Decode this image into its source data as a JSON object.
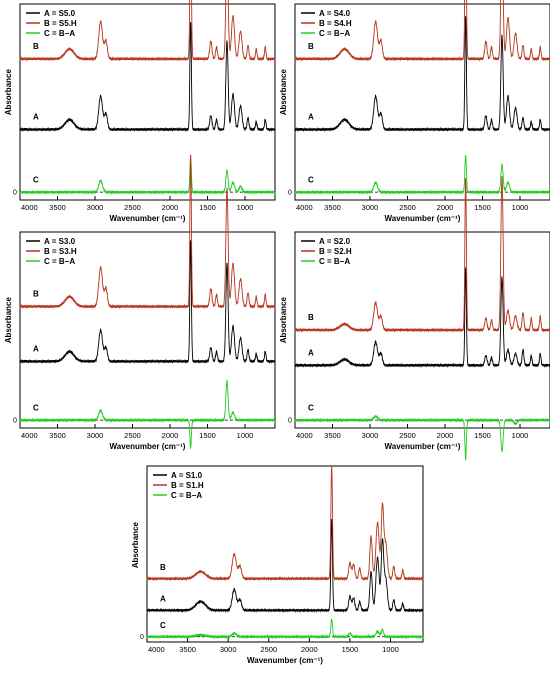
{
  "colors": {
    "A": "#000000",
    "B": "#b5361c",
    "C": "#22cc22"
  },
  "chart_data": [
    {
      "type": "line",
      "panel": "S5",
      "xlabel": "Wavenumber (cm⁻¹)",
      "ylabel": "Absorbance",
      "xlim": [
        4000,
        600
      ],
      "x_reversed": true,
      "xticks": [
        "4000",
        "3500",
        "3000",
        "2500",
        "2000",
        "1500",
        "1000"
      ],
      "zero_label": "0",
      "grid": false,
      "legend_position": "top-left",
      "series": [
        {
          "key": "A",
          "name": "A = S5.0",
          "label": "A",
          "offset": 0.36,
          "peaks": [
            [
              3340,
              60,
              0.05
            ],
            [
              2925,
              25,
              0.17
            ],
            [
              2855,
              20,
              0.08
            ],
            [
              1725,
              10,
              0.55
            ],
            [
              1455,
              15,
              0.07
            ],
            [
              1380,
              12,
              0.05
            ],
            [
              1240,
              15,
              0.45
            ],
            [
              1160,
              20,
              0.18
            ],
            [
              1060,
              20,
              0.12
            ],
            [
              960,
              12,
              0.06
            ],
            [
              850,
              10,
              0.04
            ],
            [
              730,
              10,
              0.05
            ]
          ]
        },
        {
          "key": "B",
          "name": "B = S5.H",
          "label": "B",
          "offset": 0.72,
          "peaks": [
            [
              3340,
              60,
              0.05
            ],
            [
              2925,
              25,
              0.19
            ],
            [
              2855,
              20,
              0.09
            ],
            [
              1725,
              10,
              0.72
            ],
            [
              1455,
              15,
              0.09
            ],
            [
              1380,
              12,
              0.06
            ],
            [
              1240,
              15,
              0.55
            ],
            [
              1160,
              20,
              0.22
            ],
            [
              1060,
              20,
              0.14
            ],
            [
              960,
              12,
              0.07
            ],
            [
              850,
              10,
              0.05
            ],
            [
              730,
              10,
              0.06
            ]
          ]
        },
        {
          "key": "C",
          "name": "C = B−A",
          "label": "C",
          "offset": 0.04,
          "peaks": [
            [
              2925,
              25,
              0.06
            ],
            [
              1725,
              10,
              0.18
            ],
            [
              1240,
              15,
              0.11
            ],
            [
              1160,
              20,
              0.05
            ],
            [
              1060,
              20,
              0.03
            ]
          ]
        }
      ]
    },
    {
      "type": "line",
      "panel": "S4",
      "xlabel": "Wavenumber (cm⁻¹)",
      "ylabel": "Absorbance",
      "xlim": [
        4000,
        600
      ],
      "x_reversed": true,
      "xticks": [
        "4000",
        "3500",
        "3000",
        "2500",
        "2000",
        "1500",
        "1000"
      ],
      "zero_label": "0",
      "grid": false,
      "legend_position": "top-left",
      "series": [
        {
          "key": "A",
          "name": "A = S4.0",
          "label": "A",
          "offset": 0.36,
          "peaks": [
            [
              3340,
              60,
              0.05
            ],
            [
              2925,
              25,
              0.17
            ],
            [
              2855,
              20,
              0.08
            ],
            [
              1725,
              10,
              0.58
            ],
            [
              1455,
              15,
              0.07
            ],
            [
              1380,
              12,
              0.05
            ],
            [
              1240,
              15,
              0.48
            ],
            [
              1160,
              20,
              0.17
            ],
            [
              1060,
              20,
              0.11
            ],
            [
              960,
              12,
              0.06
            ],
            [
              850,
              10,
              0.04
            ],
            [
              730,
              10,
              0.05
            ]
          ]
        },
        {
          "key": "B",
          "name": "B = S4.H",
          "label": "B",
          "offset": 0.72,
          "peaks": [
            [
              3340,
              60,
              0.05
            ],
            [
              2925,
              25,
              0.19
            ],
            [
              2855,
              20,
              0.09
            ],
            [
              1725,
              10,
              0.75
            ],
            [
              1455,
              15,
              0.09
            ],
            [
              1380,
              12,
              0.06
            ],
            [
              1240,
              15,
              0.6
            ],
            [
              1160,
              20,
              0.21
            ],
            [
              1060,
              20,
              0.13
            ],
            [
              960,
              12,
              0.07
            ],
            [
              850,
              10,
              0.05
            ],
            [
              730,
              10,
              0.06
            ]
          ]
        },
        {
          "key": "C",
          "name": "C = B−A",
          "label": "C",
          "offset": 0.04,
          "peaks": [
            [
              2925,
              25,
              0.05
            ],
            [
              1725,
              10,
              0.19
            ],
            [
              1240,
              15,
              0.14
            ],
            [
              1160,
              20,
              0.05
            ]
          ]
        }
      ]
    },
    {
      "type": "line",
      "panel": "S3",
      "xlabel": "Wavenumber (cm⁻¹)",
      "ylabel": "Absorbance",
      "xlim": [
        4000,
        600
      ],
      "x_reversed": true,
      "xticks": [
        "4000",
        "3500",
        "3000",
        "2500",
        "2000",
        "1500",
        "1000"
      ],
      "zero_label": "0",
      "grid": false,
      "legend_position": "top-left",
      "series": [
        {
          "key": "A",
          "name": "A = S3.0",
          "label": "A",
          "offset": 0.34,
          "peaks": [
            [
              3340,
              60,
              0.05
            ],
            [
              2925,
              25,
              0.16
            ],
            [
              2855,
              20,
              0.07
            ],
            [
              1725,
              10,
              0.62
            ],
            [
              1455,
              15,
              0.07
            ],
            [
              1380,
              12,
              0.05
            ],
            [
              1240,
              15,
              0.5
            ],
            [
              1160,
              20,
              0.18
            ],
            [
              1060,
              20,
              0.12
            ],
            [
              960,
              12,
              0.06
            ],
            [
              850,
              10,
              0.04
            ],
            [
              730,
              10,
              0.05
            ]
          ]
        },
        {
          "key": "B",
          "name": "B = S3.H",
          "label": "B",
          "offset": 0.62,
          "peaks": [
            [
              3340,
              60,
              0.05
            ],
            [
              2925,
              25,
              0.2
            ],
            [
              2855,
              20,
              0.09
            ],
            [
              1725,
              10,
              0.78
            ],
            [
              1455,
              15,
              0.09
            ],
            [
              1380,
              12,
              0.06
            ],
            [
              1240,
              15,
              0.6
            ],
            [
              1160,
              20,
              0.22
            ],
            [
              1060,
              20,
              0.14
            ],
            [
              960,
              12,
              0.07
            ],
            [
              850,
              10,
              0.05
            ],
            [
              730,
              10,
              0.06
            ]
          ]
        },
        {
          "key": "C",
          "name": "C = B−A",
          "label": "C",
          "offset": 0.04,
          "peaks": [
            [
              2925,
              25,
              0.05
            ],
            [
              1725,
              10,
              -0.14
            ],
            [
              1240,
              15,
              0.2
            ],
            [
              1160,
              20,
              0.04
            ]
          ]
        }
      ]
    },
    {
      "type": "line",
      "panel": "S2",
      "xlabel": "Wavenumber (cm⁻¹)",
      "ylabel": "Absorbance",
      "xlim": [
        4000,
        600
      ],
      "x_reversed": true,
      "xticks": [
        "4000",
        "3500",
        "3000",
        "2500",
        "2000",
        "1500",
        "1000"
      ],
      "zero_label": "0",
      "grid": false,
      "legend_position": "top-left",
      "series": [
        {
          "key": "A",
          "name": "A = S2.0",
          "label": "A",
          "offset": 0.32,
          "peaks": [
            [
              3340,
              60,
              0.03
            ],
            [
              2925,
              25,
              0.12
            ],
            [
              2855,
              20,
              0.06
            ],
            [
              1725,
              10,
              0.5
            ],
            [
              1455,
              15,
              0.05
            ],
            [
              1380,
              12,
              0.04
            ],
            [
              1240,
              15,
              0.45
            ],
            [
              1160,
              20,
              0.08
            ],
            [
              1060,
              20,
              0.06
            ],
            [
              960,
              12,
              0.08
            ],
            [
              850,
              10,
              0.05
            ],
            [
              730,
              10,
              0.06
            ]
          ]
        },
        {
          "key": "B",
          "name": "B = S2.H",
          "label": "B",
          "offset": 0.5,
          "peaks": [
            [
              3340,
              60,
              0.03
            ],
            [
              2925,
              25,
              0.14
            ],
            [
              2855,
              20,
              0.07
            ],
            [
              1725,
              10,
              0.78
            ],
            [
              1455,
              15,
              0.06
            ],
            [
              1380,
              12,
              0.05
            ],
            [
              1240,
              15,
              0.78
            ],
            [
              1160,
              20,
              0.1
            ],
            [
              1060,
              20,
              0.07
            ],
            [
              960,
              12,
              0.09
            ],
            [
              850,
              10,
              0.06
            ],
            [
              730,
              10,
              0.07
            ]
          ]
        },
        {
          "key": "C",
          "name": "C = B−A",
          "label": "C",
          "offset": 0.04,
          "peaks": [
            [
              2925,
              25,
              0.02
            ],
            [
              1725,
              10,
              -0.2
            ],
            [
              1240,
              15,
              -0.16
            ],
            [
              1060,
              20,
              -0.02
            ]
          ]
        }
      ]
    },
    {
      "type": "line",
      "panel": "S1",
      "xlabel": "Wavenumber (cm⁻¹)",
      "ylabel": "Absorbance",
      "xlim": [
        4000,
        600
      ],
      "x_reversed": true,
      "xticks": [
        "4000",
        "3500",
        "3000",
        "2500",
        "2000",
        "1500",
        "1000"
      ],
      "zero_label": "0",
      "grid": false,
      "legend_position": "top-left",
      "series": [
        {
          "key": "A",
          "name": "A = S1.0",
          "label": "A",
          "offset": 0.18,
          "peaks": [
            [
              3340,
              60,
              0.05
            ],
            [
              2925,
              25,
              0.12
            ],
            [
              2855,
              20,
              0.06
            ],
            [
              1725,
              10,
              0.52
            ],
            [
              1500,
              15,
              0.08
            ],
            [
              1455,
              15,
              0.07
            ],
            [
              1380,
              12,
              0.05
            ],
            [
              1240,
              15,
              0.22
            ],
            [
              1160,
              20,
              0.3
            ],
            [
              1100,
              15,
              0.38
            ],
            [
              1060,
              20,
              0.18
            ],
            [
              960,
              12,
              0.06
            ],
            [
              850,
              10,
              0.04
            ]
          ]
        },
        {
          "key": "B",
          "name": "B = S1.H",
          "label": "B",
          "offset": 0.36,
          "peaks": [
            [
              3340,
              60,
              0.04
            ],
            [
              2925,
              25,
              0.14
            ],
            [
              2855,
              20,
              0.07
            ],
            [
              1725,
              10,
              0.64
            ],
            [
              1500,
              15,
              0.09
            ],
            [
              1455,
              15,
              0.08
            ],
            [
              1380,
              12,
              0.06
            ],
            [
              1240,
              15,
              0.24
            ],
            [
              1160,
              20,
              0.32
            ],
            [
              1100,
              15,
              0.4
            ],
            [
              1060,
              20,
              0.2
            ],
            [
              960,
              12,
              0.07
            ],
            [
              850,
              10,
              0.05
            ]
          ]
        },
        {
          "key": "C",
          "name": "C = B−A",
          "label": "C",
          "offset": 0.03,
          "peaks": [
            [
              3340,
              60,
              0.01
            ],
            [
              2925,
              25,
              0.02
            ],
            [
              1725,
              10,
              0.1
            ],
            [
              1500,
              15,
              0.02
            ],
            [
              1160,
              20,
              0.03
            ],
            [
              1100,
              15,
              0.04
            ]
          ]
        }
      ]
    }
  ]
}
